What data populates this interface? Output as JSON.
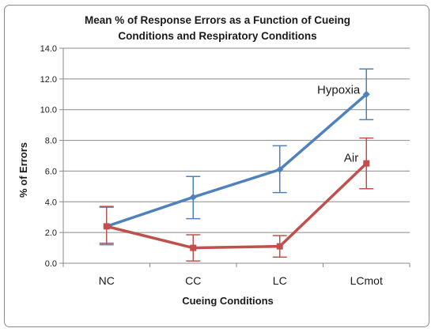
{
  "chart_data": {
    "type": "line",
    "title_line1": "Mean % of Response Errors as a Function of Cueing",
    "title_line2": "Conditions and Respiratory Conditions",
    "xlabel": "Cueing Conditions",
    "ylabel": "% of Errors",
    "categories": [
      "NC",
      "CC",
      "LC",
      "LCmot"
    ],
    "ylim": [
      0,
      14
    ],
    "yticks": [
      "0.0",
      "2.0",
      "4.0",
      "6.0",
      "8.0",
      "10.0",
      "12.0",
      "14.0"
    ],
    "grid": true,
    "series": [
      {
        "name": "Hypoxia",
        "color": "#4f81bd",
        "marker": "diamond",
        "values": [
          2.4,
          4.3,
          6.1,
          11.0
        ],
        "error_low": [
          1.2,
          2.9,
          4.6,
          9.35
        ],
        "error_high": [
          3.65,
          5.65,
          7.65,
          12.65
        ]
      },
      {
        "name": "Air",
        "color": "#c0504d",
        "marker": "square",
        "values": [
          2.4,
          1.0,
          1.1,
          6.5
        ],
        "error_low": [
          1.3,
          0.15,
          0.4,
          4.85
        ],
        "error_high": [
          3.7,
          1.85,
          1.8,
          8.15
        ]
      }
    ]
  }
}
